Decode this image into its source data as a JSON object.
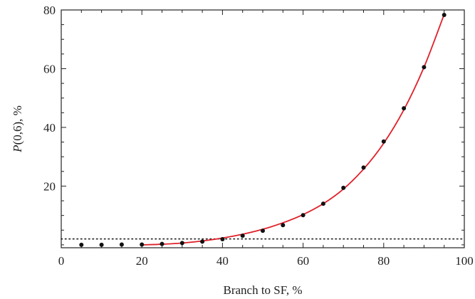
{
  "chart_data": {
    "type": "scatter",
    "xlabel": "Branch to SF, %",
    "ylabel_italic": "P",
    "ylabel_rest": "(0,6), %",
    "xlim": [
      0,
      100
    ],
    "ylim": [
      -1,
      80
    ],
    "xticks": [
      0,
      20,
      40,
      60,
      80,
      100
    ],
    "xtick_labels": [
      "0",
      "20",
      "40",
      "60",
      "80",
      "100"
    ],
    "yticks": [
      20,
      40,
      60,
      80
    ],
    "ytick_labels": [
      "20",
      "40",
      "60",
      "80"
    ],
    "grid": false,
    "series": [
      {
        "kind": "points",
        "color": "#111111",
        "x": [
          5,
          10,
          15,
          20,
          25,
          30,
          35,
          40,
          45,
          50,
          55,
          60,
          65,
          70,
          75,
          80,
          85,
          90,
          95
        ],
        "y": [
          0.0,
          0.0,
          0.1,
          0.1,
          0.3,
          0.6,
          1.1,
          1.9,
          3.1,
          4.8,
          6.7,
          10.1,
          14.0,
          19.4,
          26.3,
          35.2,
          46.5,
          60.5,
          78.3
        ]
      },
      {
        "kind": "fit-curve",
        "color": "#e0202a",
        "x": [
          20.5,
          25,
          30,
          35,
          40,
          45,
          50,
          55,
          60,
          65,
          70,
          75,
          80,
          85,
          90,
          95
        ],
        "y": [
          0.0,
          0.2,
          0.6,
          1.3,
          2.3,
          3.6,
          5.3,
          7.5,
          10.3,
          14.0,
          19.0,
          25.8,
          34.6,
          46.0,
          60.5,
          78.5
        ]
      },
      {
        "kind": "reference-line",
        "style": "dotted",
        "color": "#111111",
        "y": 2.0
      }
    ]
  }
}
